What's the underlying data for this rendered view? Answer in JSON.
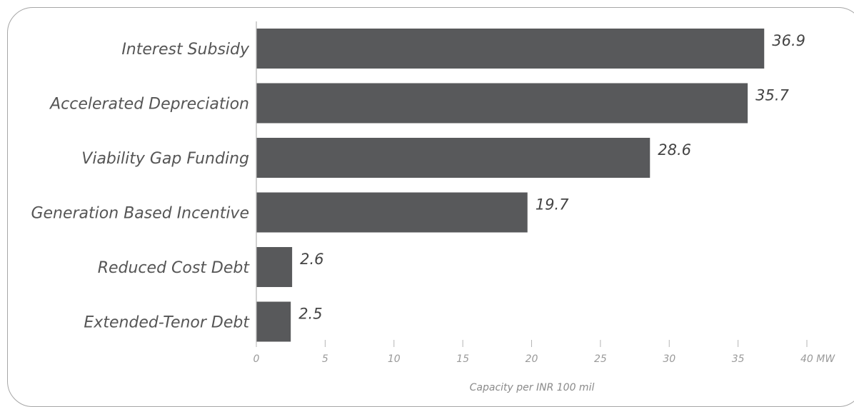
{
  "chart_data": {
    "type": "bar",
    "orientation": "horizontal",
    "categories": [
      "Interest Subsidy",
      "Accelerated Depreciation",
      "Viability Gap Funding",
      "Generation Based Incentive",
      "Reduced Cost Debt",
      "Extended-Tenor Debt"
    ],
    "values": [
      36.9,
      35.7,
      28.6,
      19.7,
      2.6,
      2.5
    ],
    "value_labels": [
      "36.9",
      "35.7",
      "28.6",
      "19.7",
      "2.6",
      "2.5"
    ],
    "xticks": [
      "0",
      "5",
      "10",
      "15",
      "20",
      "25",
      "30",
      "35",
      "40 MW"
    ],
    "xlim": [
      0,
      40
    ],
    "xlabel": "Capacity per INR 100 mil",
    "title": "",
    "grid": false,
    "colors": {
      "bar": "#58595b",
      "axis": "#b5b5b5",
      "frame": "#a6a6a6"
    }
  }
}
